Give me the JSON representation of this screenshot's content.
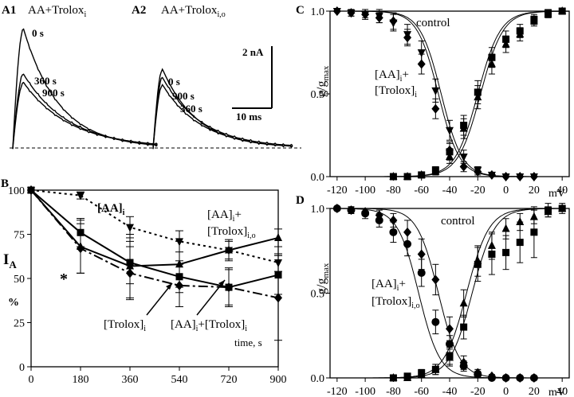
{
  "panelA1": {
    "letter": "A1",
    "label": "AA+Trolox",
    "sub": "i",
    "traces": [
      {
        "name": "0 s",
        "peak": 1.0
      },
      {
        "name": "360 s",
        "peak": 0.62
      },
      {
        "name": "900 s",
        "peak": 0.55
      }
    ]
  },
  "panelA2": {
    "letter": "A2",
    "label": "AA+Trolox",
    "sub": "i,o",
    "traces": [
      {
        "name": "0 s",
        "peak": 0.66
      },
      {
        "name": "900 s",
        "peak": 0.59
      },
      {
        "name": "360 s",
        "peak": 0.53
      }
    ]
  },
  "scalebar": {
    "current": "2 nA",
    "time": "10 ms"
  },
  "chart_data": [
    {
      "id": "B",
      "type": "line",
      "letter": "B",
      "ylabel": "I",
      "ylabel_sub": "A",
      "yunit": "%",
      "xlabel": "time, s",
      "xlim": [
        0,
        900
      ],
      "ylim": [
        0,
        100
      ],
      "xticks": [
        0,
        180,
        360,
        540,
        720,
        900
      ],
      "yticks": [
        0,
        25,
        50,
        75,
        100
      ],
      "star": "*",
      "series": [
        {
          "name": "[AA]i",
          "style": "dot",
          "marker": "tri-down",
          "x": [
            0,
            180,
            360,
            540,
            720,
            900
          ],
          "y": [
            100,
            97,
            79,
            71,
            66,
            59
          ],
          "err": [
            0,
            2,
            6,
            6,
            5,
            5
          ]
        },
        {
          "name": "[AA]i+[Trolox]i,o",
          "style": "solid",
          "marker": "tri-up",
          "x": [
            0,
            180,
            360,
            540,
            720,
            900
          ],
          "y": [
            100,
            68,
            57,
            58,
            66,
            73
          ],
          "err": [
            0,
            15,
            18,
            13,
            6,
            5
          ]
        },
        {
          "name": "[Trolox]i",
          "style": "solid",
          "marker": "square",
          "x": [
            0,
            180,
            360,
            540,
            720,
            900
          ],
          "y": [
            100,
            76,
            59,
            51,
            45,
            52
          ],
          "err": [
            0,
            8,
            12,
            9,
            11,
            11
          ]
        },
        {
          "name": "[AA]i+[Trolox]i",
          "style": "dashdot",
          "marker": "diamond",
          "x": [
            0,
            180,
            360,
            540,
            720,
            900
          ],
          "y": [
            100,
            67,
            53,
            46,
            45,
            39
          ],
          "err": [
            0,
            14,
            15,
            12,
            10,
            24
          ]
        }
      ],
      "labels": {
        "aa": "[AA]",
        "aa_sub": "i",
        "aat1": "[AA]",
        "aat1_sub": "i",
        "aat1_plus": "+",
        "aat2": "[Trolox]",
        "aat2_sub": "i,o",
        "tro": "[Trolox]",
        "tro_sub": "i",
        "aatro1": "[AA]",
        "aatro1_sub": "i",
        "aatro1_plus": "+[Trolox]",
        "aatro2_sub": "i"
      }
    },
    {
      "id": "C",
      "type": "scatter",
      "letter": "C",
      "ylabel": "g/g",
      "ylabel_sub": "max",
      "xunit": "mV",
      "xlim": [
        -125,
        45
      ],
      "ylim": [
        0,
        1
      ],
      "xticks": [
        -120,
        -100,
        -80,
        -60,
        -40,
        -20,
        0,
        20,
        40
      ],
      "yticks": [
        0.0,
        0.5,
        1.0
      ],
      "series": [
        {
          "name": "control",
          "curve": "inact",
          "v50": -48,
          "k": 7.5,
          "marker": "diamond",
          "x": [
            -120,
            -110,
            -100,
            -90,
            -80,
            -70,
            -60,
            -50,
            -40,
            -30,
            -20,
            -10,
            0,
            10,
            20
          ],
          "y": [
            1.0,
            0.99,
            0.98,
            0.96,
            0.94,
            0.84,
            0.68,
            0.41,
            0.16,
            0.06,
            0.03,
            0.01,
            0.0,
            0.0,
            0.0
          ],
          "err": [
            0,
            0.02,
            0.02,
            0.03,
            0.05,
            0.05,
            0.06,
            0.06,
            0.05,
            0.03,
            0.02,
            0.01,
            0,
            0,
            0
          ]
        },
        {
          "name": "[AA]i+[Trolox]i",
          "curve": "inact",
          "v50": -46,
          "k": 7.5,
          "marker": "tri-down",
          "x": [
            -120,
            -110,
            -100,
            -90,
            -80,
            -70,
            -60,
            -50,
            -40,
            -30,
            -20,
            -10,
            0,
            10,
            20
          ],
          "y": [
            1.0,
            0.99,
            0.98,
            0.97,
            0.93,
            0.86,
            0.75,
            0.52,
            0.28,
            0.12,
            0.04,
            0.01,
            0.0,
            0.0,
            0.0
          ],
          "err": [
            0,
            0.02,
            0.03,
            0.04,
            0.05,
            0.06,
            0.07,
            0.07,
            0.06,
            0.04,
            0.02,
            0.01,
            0,
            0,
            0
          ]
        },
        {
          "name": "control act",
          "curve": "act",
          "v50": -20,
          "k": 8,
          "marker": "square",
          "x": [
            -80,
            -70,
            -60,
            -50,
            -40,
            -30,
            -20,
            -10,
            0,
            10,
            20,
            30,
            40
          ],
          "y": [
            0.0,
            0.0,
            0.01,
            0.04,
            0.15,
            0.31,
            0.51,
            0.72,
            0.83,
            0.88,
            0.95,
            0.99,
            1.0
          ],
          "err": [
            0,
            0,
            0.01,
            0.02,
            0.05,
            0.06,
            0.07,
            0.06,
            0.05,
            0.04,
            0.03,
            0.02,
            0
          ]
        },
        {
          "name": "[AA]i+[Trolox]i act",
          "curve": "act",
          "v50": -18,
          "k": 8,
          "marker": "tri-up",
          "x": [
            -80,
            -70,
            -60,
            -50,
            -40,
            -30,
            -20,
            -10,
            0,
            10,
            20,
            30,
            40
          ],
          "y": [
            0.0,
            0.0,
            0.01,
            0.03,
            0.12,
            0.29,
            0.48,
            0.68,
            0.8,
            0.86,
            0.94,
            0.98,
            1.0
          ],
          "err": [
            0,
            0,
            0.01,
            0.02,
            0.04,
            0.06,
            0.07,
            0.06,
            0.05,
            0.04,
            0.03,
            0.02,
            0
          ]
        }
      ],
      "labels": {
        "control": "control",
        "l1": "[AA]",
        "l1_sub": "i",
        "l1_plus": "+",
        "l2": "[Trolox]",
        "l2_sub": "i"
      }
    },
    {
      "id": "D",
      "type": "scatter",
      "letter": "D",
      "ylabel": "g/g",
      "ylabel_sub": "max",
      "xunit": "mV",
      "xlim": [
        -125,
        45
      ],
      "ylim": [
        0,
        1
      ],
      "xticks": [
        -120,
        -100,
        -80,
        -60,
        -40,
        -20,
        0,
        20,
        40
      ],
      "yticks": [
        0.0,
        0.5,
        1.0
      ],
      "series": [
        {
          "name": "control",
          "curve": "inact",
          "v50": -48,
          "k": 7.5,
          "marker": "diamond",
          "x": [
            -120,
            -110,
            -100,
            -90,
            -80,
            -70,
            -60,
            -50,
            -40,
            -30,
            -20,
            -10,
            0,
            10,
            20
          ],
          "y": [
            1.0,
            0.99,
            0.98,
            0.96,
            0.93,
            0.86,
            0.73,
            0.58,
            0.29,
            0.09,
            0.03,
            0.01,
            0.0,
            0.0,
            0.0
          ],
          "err": [
            0,
            0.02,
            0.02,
            0.03,
            0.04,
            0.07,
            0.09,
            0.09,
            0.07,
            0.04,
            0.02,
            0.01,
            0,
            0,
            0
          ]
        },
        {
          "name": "[AA]i+[Trolox]i,o",
          "curve": "inact",
          "v50": -62,
          "k": 7.5,
          "marker": "circle",
          "x": [
            -120,
            -110,
            -100,
            -90,
            -80,
            -70,
            -60,
            -50,
            -40,
            -30,
            -20,
            -10,
            0,
            10,
            20
          ],
          "y": [
            1.0,
            0.99,
            0.97,
            0.93,
            0.86,
            0.79,
            0.62,
            0.33,
            0.2,
            0.07,
            0.02,
            0.0,
            0.0,
            0.0,
            0.0
          ],
          "err": [
            0,
            0.02,
            0.03,
            0.04,
            0.06,
            0.07,
            0.08,
            0.07,
            0.05,
            0.03,
            0.02,
            0,
            0,
            0,
            0
          ]
        },
        {
          "name": "control act",
          "curve": "act",
          "v50": -24,
          "k": 8,
          "marker": "tri-up",
          "x": [
            -80,
            -70,
            -60,
            -50,
            -40,
            -30,
            -20,
            -10,
            0,
            10,
            20,
            30,
            40
          ],
          "y": [
            0.0,
            0.0,
            0.02,
            0.05,
            0.12,
            0.44,
            0.69,
            0.78,
            0.88,
            0.92,
            0.95,
            0.98,
            1.0
          ],
          "err": [
            0,
            0,
            0.01,
            0.03,
            0.05,
            0.08,
            0.09,
            0.08,
            0.06,
            0.05,
            0.04,
            0.03,
            0
          ]
        },
        {
          "name": "[AA]i+[Trolox]i,o act",
          "curve": "act",
          "v50": -28,
          "k": 8,
          "marker": "square",
          "x": [
            -80,
            -70,
            -60,
            -50,
            -40,
            -30,
            -20,
            -10,
            0,
            10,
            20,
            30,
            40
          ],
          "y": [
            0.0,
            0.01,
            0.03,
            0.05,
            0.13,
            0.3,
            0.67,
            0.73,
            0.74,
            0.8,
            0.86,
            0.99,
            1.0
          ],
          "err": [
            0,
            0.01,
            0.02,
            0.03,
            0.05,
            0.07,
            0.1,
            0.12,
            0.1,
            0.12,
            0.15,
            0.04,
            0.03
          ]
        }
      ],
      "labels": {
        "control": "control",
        "l1": "[AA]",
        "l1_sub": "i",
        "l1_plus": "+",
        "l2": "[Trolox]",
        "l2_sub": "i,o"
      }
    }
  ]
}
